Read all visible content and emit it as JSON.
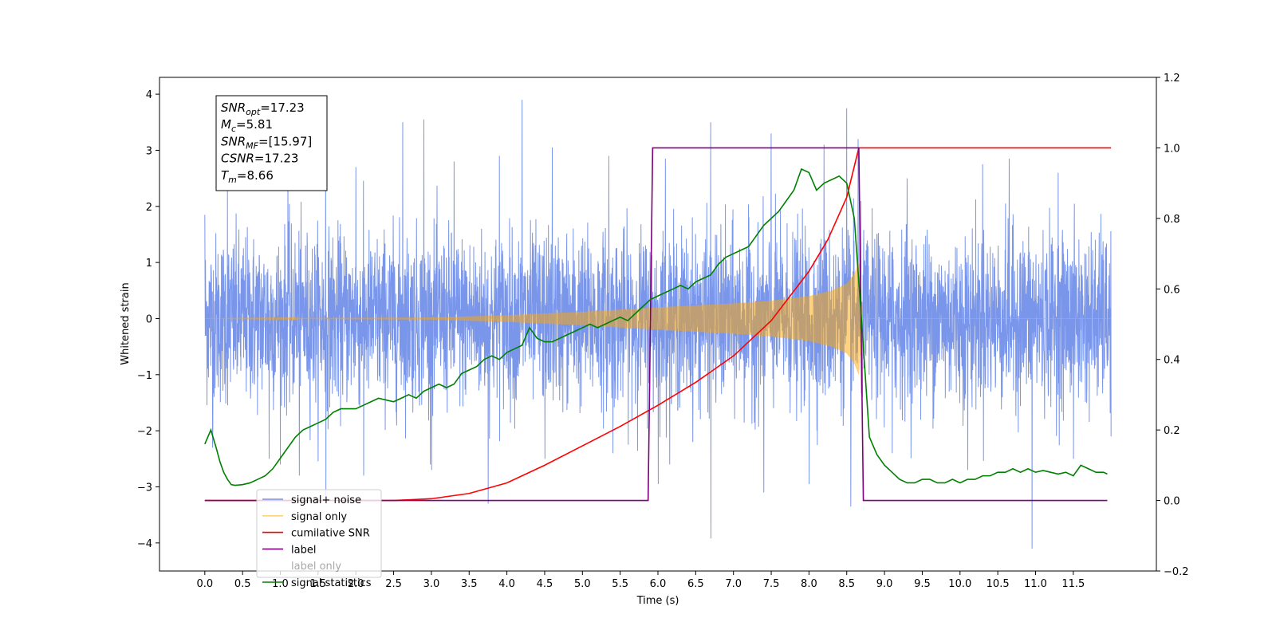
{
  "chart_data": {
    "type": "line",
    "title": "",
    "xlabel": "Time (s)",
    "ylabel": "Whitened strain",
    "ylabel_right": "",
    "xlim": [
      -0.6,
      12.6
    ],
    "ylim": [
      -4.5,
      4.3
    ],
    "ylim_right": [
      -0.2,
      1.2
    ],
    "x_ticks": [
      0.0,
      0.5,
      1.0,
      1.5,
      2.0,
      2.5,
      3.0,
      3.5,
      4.0,
      4.5,
      5.0,
      5.5,
      6.0,
      6.5,
      7.0,
      7.5,
      8.0,
      8.5,
      9.0,
      9.5,
      10.0,
      10.5,
      11.0,
      11.5
    ],
    "x_tick_labels": [
      "0.0",
      "0.5",
      "1.0",
      "1.5",
      "2.0",
      "2.5",
      "3.0",
      "3.5",
      "4.0",
      "4.5",
      "5.0",
      "5.5",
      "6.0",
      "6.5",
      "7.0",
      "7.5",
      "8.0",
      "8.5",
      "9.0",
      "9.5",
      "10.0",
      "10.5",
      "11.0",
      "11.5"
    ],
    "y_ticks_left": [
      -4,
      -3,
      -2,
      -1,
      0,
      1,
      2,
      3,
      4
    ],
    "y_tick_labels_left": [
      "−4",
      "−3",
      "−2",
      "−1",
      "0",
      "1",
      "2",
      "3",
      "4"
    ],
    "y_ticks_right": [
      -0.2,
      0.0,
      0.2,
      0.4,
      0.6,
      0.8,
      1.0,
      1.2
    ],
    "y_tick_labels_right": [
      "−0.2",
      "0.0",
      "0.2",
      "0.4",
      "0.6",
      "0.8",
      "1.0",
      "1.2"
    ],
    "grid": false,
    "legend_position": "lower-left",
    "annotation": {
      "lines": [
        {
          "main": "SNR",
          "sub": "opt",
          "rest": "=17.23"
        },
        {
          "main": "M",
          "sub": "c",
          "rest": "=5.81"
        },
        {
          "main": "SNR",
          "sub": "MF",
          "rest": "=[15.97]"
        },
        {
          "main": "CSNR",
          "sub": "",
          "rest": "=17.23"
        },
        {
          "main": "T",
          "sub": "m",
          "rest": "=8.66"
        }
      ]
    },
    "series": [
      {
        "name": "signal+ noise",
        "axis": "left",
        "color": "#4169e1",
        "kind": "noise",
        "x_range": [
          0.0,
          12.0
        ],
        "amplitude": 1.0,
        "peak_spikes": [
          [
            0.0,
            1.85
          ],
          [
            0.3,
            2.3
          ],
          [
            1.1,
            2.7
          ],
          [
            1.6,
            2.85
          ],
          [
            2.0,
            2.7
          ],
          [
            2.62,
            3.5
          ],
          [
            2.9,
            3.55
          ],
          [
            3.3,
            2.8
          ],
          [
            3.9,
            2.9
          ],
          [
            4.2,
            3.9
          ],
          [
            4.6,
            3.05
          ],
          [
            5.35,
            2.9
          ],
          [
            6.1,
            2.85
          ],
          [
            6.7,
            3.5
          ],
          [
            7.5,
            3.3
          ],
          [
            8.2,
            3.1
          ],
          [
            8.5,
            3.75
          ],
          [
            8.65,
            3.2
          ],
          [
            9.3,
            2.5
          ],
          [
            10.3,
            2.75
          ],
          [
            10.65,
            2.85
          ],
          [
            11.3,
            2.6
          ],
          [
            12.0,
            2.15
          ]
        ],
        "trough_spikes": [
          [
            0.1,
            -2.3
          ],
          [
            0.85,
            -2.5
          ],
          [
            1.25,
            -2.8
          ],
          [
            1.6,
            -3.2
          ],
          [
            2.1,
            -2.8
          ],
          [
            3.0,
            -2.7
          ],
          [
            3.75,
            -3.3
          ],
          [
            4.5,
            -2.5
          ],
          [
            5.4,
            -2.4
          ],
          [
            6.0,
            -2.95
          ],
          [
            6.7,
            -3.92
          ],
          [
            7.4,
            -3.1
          ],
          [
            8.0,
            -2.95
          ],
          [
            8.55,
            -3.35
          ],
          [
            9.1,
            -2.4
          ],
          [
            10.1,
            -2.7
          ],
          [
            10.95,
            -4.1
          ],
          [
            11.5,
            -2.5
          ],
          [
            12.0,
            -2.1
          ]
        ]
      },
      {
        "name": "signal only",
        "axis": "left",
        "color": "#ffa500",
        "kind": "chirp",
        "x_range": [
          0.0,
          12.0
        ],
        "merger_time": 8.66,
        "envelope": {
          "x": [
            0.0,
            3.0,
            4.0,
            5.0,
            6.0,
            7.0,
            7.5,
            8.0,
            8.3,
            8.5,
            8.6,
            8.66
          ],
          "y": [
            0.0,
            0.02,
            0.06,
            0.12,
            0.2,
            0.27,
            0.32,
            0.4,
            0.5,
            0.62,
            0.8,
            1.0
          ]
        }
      },
      {
        "name": "cumilative SNR",
        "axis": "right",
        "color": "#ff0000",
        "x": [
          0.0,
          2.5,
          3.0,
          3.5,
          4.0,
          4.5,
          5.0,
          5.5,
          6.0,
          6.5,
          7.0,
          7.5,
          8.0,
          8.25,
          8.5,
          8.66,
          8.66,
          12.0
        ],
        "values": [
          0.0,
          0.0,
          0.005,
          0.02,
          0.05,
          0.1,
          0.155,
          0.21,
          0.27,
          0.335,
          0.41,
          0.51,
          0.65,
          0.74,
          0.86,
          1.0,
          1.0,
          1.0
        ]
      },
      {
        "name": "label",
        "axis": "right",
        "color": "#800080",
        "x": [
          0.0,
          5.87,
          5.93,
          8.66,
          8.72,
          11.95
        ],
        "values": [
          0.0,
          0.0,
          1.0,
          1.0,
          0.0,
          0.0
        ]
      },
      {
        "name": "label only",
        "axis": "right",
        "color": "#ffffff",
        "legend_only": true,
        "x": [],
        "values": []
      },
      {
        "name": "signal statistics",
        "axis": "right",
        "color": "#008000",
        "x": [
          0.0,
          0.08,
          0.15,
          0.2,
          0.25,
          0.3,
          0.35,
          0.4,
          0.5,
          0.6,
          0.7,
          0.8,
          0.9,
          1.0,
          1.1,
          1.2,
          1.3,
          1.4,
          1.5,
          1.6,
          1.7,
          1.8,
          1.9,
          2.0,
          2.1,
          2.2,
          2.3,
          2.4,
          2.5,
          2.6,
          2.7,
          2.8,
          2.9,
          3.0,
          3.1,
          3.2,
          3.3,
          3.4,
          3.5,
          3.6,
          3.7,
          3.8,
          3.9,
          4.0,
          4.1,
          4.2,
          4.3,
          4.4,
          4.5,
          4.6,
          4.7,
          4.8,
          4.9,
          5.0,
          5.1,
          5.2,
          5.3,
          5.4,
          5.5,
          5.6,
          5.7,
          5.8,
          5.9,
          6.0,
          6.1,
          6.2,
          6.3,
          6.4,
          6.5,
          6.6,
          6.7,
          6.8,
          6.9,
          7.0,
          7.1,
          7.2,
          7.3,
          7.4,
          7.5,
          7.6,
          7.7,
          7.8,
          7.9,
          8.0,
          8.1,
          8.2,
          8.3,
          8.4,
          8.5,
          8.6,
          8.7,
          8.8,
          8.9,
          9.0,
          9.1,
          9.2,
          9.3,
          9.4,
          9.5,
          9.6,
          9.7,
          9.8,
          9.9,
          10.0,
          10.1,
          10.2,
          10.3,
          10.4,
          10.5,
          10.6,
          10.7,
          10.8,
          10.9,
          11.0,
          11.1,
          11.2,
          11.3,
          11.4,
          11.5,
          11.6,
          11.7,
          11.8,
          11.9,
          11.95
        ],
        "values": [
          0.16,
          0.2,
          0.15,
          0.11,
          0.08,
          0.06,
          0.045,
          0.043,
          0.045,
          0.05,
          0.06,
          0.07,
          0.09,
          0.12,
          0.15,
          0.18,
          0.2,
          0.21,
          0.22,
          0.23,
          0.25,
          0.26,
          0.26,
          0.26,
          0.27,
          0.28,
          0.29,
          0.285,
          0.28,
          0.29,
          0.3,
          0.29,
          0.31,
          0.32,
          0.33,
          0.32,
          0.33,
          0.36,
          0.37,
          0.38,
          0.4,
          0.41,
          0.4,
          0.42,
          0.43,
          0.44,
          0.49,
          0.46,
          0.45,
          0.45,
          0.46,
          0.47,
          0.48,
          0.49,
          0.5,
          0.49,
          0.5,
          0.51,
          0.52,
          0.51,
          0.53,
          0.55,
          0.57,
          0.58,
          0.59,
          0.6,
          0.61,
          0.6,
          0.62,
          0.63,
          0.64,
          0.67,
          0.69,
          0.7,
          0.71,
          0.72,
          0.75,
          0.78,
          0.8,
          0.82,
          0.85,
          0.88,
          0.94,
          0.93,
          0.88,
          0.9,
          0.91,
          0.92,
          0.9,
          0.8,
          0.5,
          0.18,
          0.13,
          0.1,
          0.08,
          0.06,
          0.05,
          0.05,
          0.06,
          0.06,
          0.05,
          0.05,
          0.06,
          0.05,
          0.06,
          0.06,
          0.07,
          0.07,
          0.08,
          0.08,
          0.09,
          0.08,
          0.09,
          0.08,
          0.085,
          0.08,
          0.075,
          0.08,
          0.07,
          0.1,
          0.09,
          0.08,
          0.08,
          0.075
        ]
      }
    ]
  }
}
